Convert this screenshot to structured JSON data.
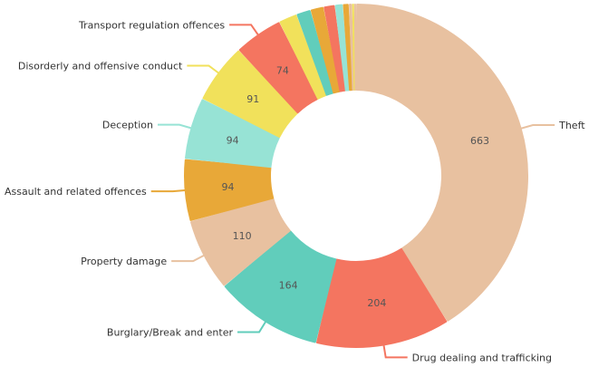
{
  "chart_data": {
    "type": "pie",
    "donut": true,
    "slices": [
      {
        "label": "Theft",
        "value": 663,
        "color": "#e8c1a0"
      },
      {
        "label": "Drug dealing and trafficking",
        "value": 204,
        "color": "#f47560"
      },
      {
        "label": "Burglary/Break and enter",
        "value": 164,
        "color": "#61cdbb"
      },
      {
        "label": "Property damage",
        "value": 110,
        "color": "#e8c1a0"
      },
      {
        "label": "Assault and related offences",
        "value": 94,
        "color": "#e8a838"
      },
      {
        "label": "Deception",
        "value": 94,
        "color": "#97e3d5"
      },
      {
        "label": "Disorderly and offensive conduct",
        "value": 91,
        "color": "#f1e15b"
      },
      {
        "label": "Transport regulation offences",
        "value": 74,
        "color": "#f47560"
      },
      {
        "label": "",
        "value": 28,
        "color": "#f1e15b"
      },
      {
        "label": "",
        "value": 22,
        "color": "#61cdbb"
      },
      {
        "label": "",
        "value": 20,
        "color": "#e8a838"
      },
      {
        "label": "",
        "value": 17,
        "color": "#f47560"
      },
      {
        "label": "",
        "value": 12,
        "color": "#97e3d5"
      },
      {
        "label": "",
        "value": 9,
        "color": "#e8a838"
      },
      {
        "label": "",
        "value": 5,
        "color": "#e8c1a0"
      },
      {
        "label": "",
        "value": 3,
        "color": "#f1e15b"
      },
      {
        "label": "",
        "value": 3,
        "color": "#e8c1a0"
      }
    ],
    "legend": "none"
  }
}
